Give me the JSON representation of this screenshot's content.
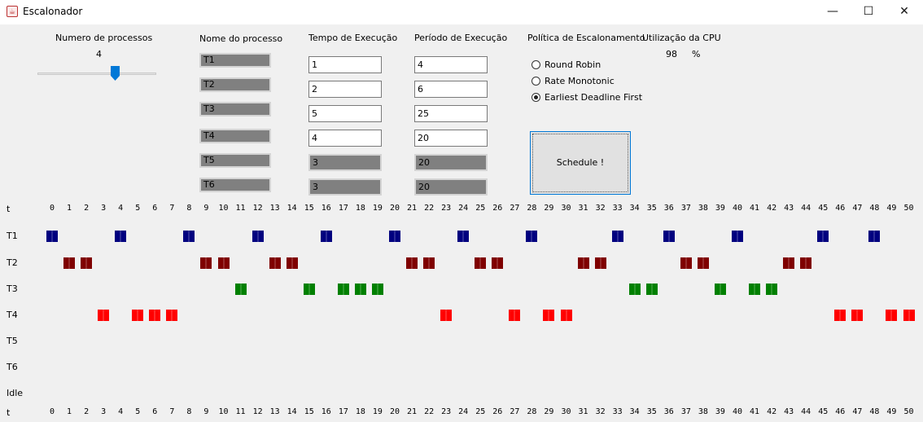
{
  "window": {
    "title": "Escalonador",
    "controls": [
      "—",
      "☐",
      "✕"
    ]
  },
  "process_count": {
    "label": "Numero de processos",
    "value": "4",
    "slider_fraction": 0.67
  },
  "columns": {
    "name": "Nome do processo",
    "exec": "Tempo de Execução",
    "period": "Período de Execução"
  },
  "processes": [
    {
      "name": "T1",
      "exec": "1",
      "period": "4",
      "enabled": true
    },
    {
      "name": "T2",
      "exec": "2",
      "period": "6",
      "enabled": true
    },
    {
      "name": "T3",
      "exec": "5",
      "period": "25",
      "enabled": true
    },
    {
      "name": "T4",
      "exec": "4",
      "period": "20",
      "enabled": true
    },
    {
      "name": "T5",
      "exec": "3",
      "period": "20",
      "enabled": false
    },
    {
      "name": "T6",
      "exec": "3",
      "period": "20",
      "enabled": false
    }
  ],
  "policy": {
    "label": "Política de Escalonamento",
    "options": [
      "Round Robin",
      "Rate Monotonic",
      "Earliest Deadline First"
    ],
    "selected": 2
  },
  "cpu": {
    "label": "Utilização da CPU",
    "value": "98",
    "unit": "%"
  },
  "schedule_button": "Schedule !",
  "timeline": {
    "axis_label": "t",
    "ticks": [
      "0",
      "1",
      "2",
      "3",
      "4",
      "5",
      "6",
      "7",
      "8",
      "9",
      "10",
      "11",
      "12",
      "13",
      "14",
      "15",
      "16",
      "17",
      "18",
      "19",
      "20",
      "21",
      "22",
      "23",
      "24",
      "25",
      "26",
      "27",
      "28",
      "29",
      "30",
      "31",
      "32",
      "33",
      "34",
      "35",
      "36",
      "37",
      "38",
      "39",
      "40",
      "41",
      "42",
      "43",
      "44",
      "45",
      "46",
      "47",
      "48",
      "49",
      "50"
    ],
    "rows": [
      {
        "label": "T1",
        "color": "#00007f",
        "times": [
          0,
          4,
          8,
          12,
          16,
          20,
          24,
          28,
          33,
          36,
          40,
          45,
          48
        ]
      },
      {
        "label": "T2",
        "color": "#7f0000",
        "times": [
          1,
          2,
          9,
          10,
          13,
          14,
          21,
          22,
          25,
          26,
          31,
          32,
          37,
          38,
          43,
          44
        ]
      },
      {
        "label": "T3",
        "color": "#008000",
        "times": [
          11,
          15,
          17,
          18,
          19,
          34,
          35,
          39,
          41,
          42
        ]
      },
      {
        "label": "T4",
        "color": "#ff0000",
        "times": [
          3,
          5,
          6,
          7,
          23,
          27,
          29,
          30,
          46,
          47,
          49,
          50
        ]
      },
      {
        "label": "T5",
        "color": "#808080",
        "times": []
      },
      {
        "label": "T6",
        "color": "#808080",
        "times": []
      },
      {
        "label": "Idle",
        "color": "#808080",
        "times": []
      }
    ]
  }
}
